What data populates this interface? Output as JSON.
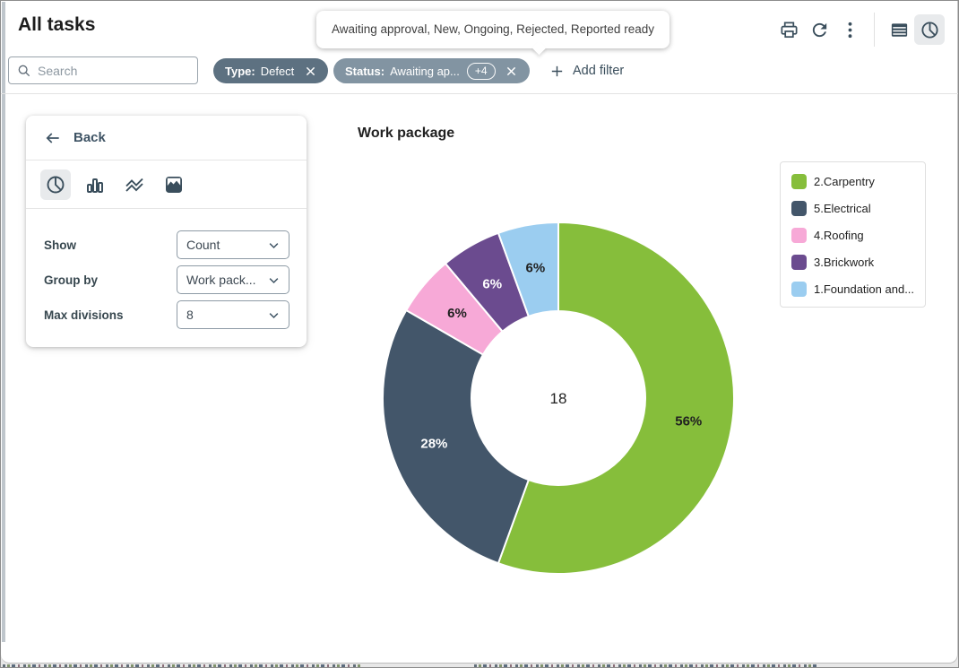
{
  "window": {
    "title": "All tasks"
  },
  "tooltip": {
    "text": "Awaiting approval, New, Ongoing, Rejected, Reported ready"
  },
  "header_actions": {
    "icons": [
      "print-icon",
      "refresh-icon",
      "more-vert-icon",
      "table-view-icon",
      "pie-view-icon"
    ],
    "selected_view": "pie-view"
  },
  "filterbar": {
    "search": {
      "placeholder": "Search",
      "value": ""
    },
    "chips": [
      {
        "field": "Type:",
        "value": "Defect"
      },
      {
        "field": "Status:",
        "value": "Awaiting ap...",
        "badge": "+4"
      }
    ],
    "add_filter_label": "Add filter"
  },
  "panel": {
    "back_label": "Back",
    "chart_types": [
      "pie-chart-icon",
      "bar-chart-icon",
      "line-chart-icon",
      "area-chart-icon"
    ],
    "selected_chart_type": "pie",
    "fields": [
      {
        "label": "Show",
        "value": "Count"
      },
      {
        "label": "Group by",
        "value": "Work pack..."
      },
      {
        "label": "Max divisions",
        "value": "8"
      }
    ]
  },
  "chart_data": {
    "type": "pie",
    "donut": true,
    "title": "Work package",
    "center_label": "18",
    "legend_position": "right",
    "series": [
      {
        "name": "2.Carpentry",
        "value": 10,
        "percent_label": "56%",
        "color": "#86BE3B"
      },
      {
        "name": "5.Electrical",
        "value": 5,
        "percent_label": "28%",
        "color": "#43566A"
      },
      {
        "name": "4.Roofing",
        "value": 1,
        "percent_label": "6%",
        "color": "#F7A9D7"
      },
      {
        "name": "3.Brickwork",
        "value": 1,
        "percent_label": "6%",
        "color": "#6B4B8F"
      },
      {
        "name": "1.Foundation and...",
        "value": 1,
        "percent_label": "6%",
        "color": "#9BCDF0"
      }
    ]
  },
  "colors": {
    "accent_dark": "#3E5364",
    "chip_type_bg": "#5D7181",
    "chip_status_bg": "#8294A2",
    "selected_icon_bg": "#E8EAEC"
  }
}
